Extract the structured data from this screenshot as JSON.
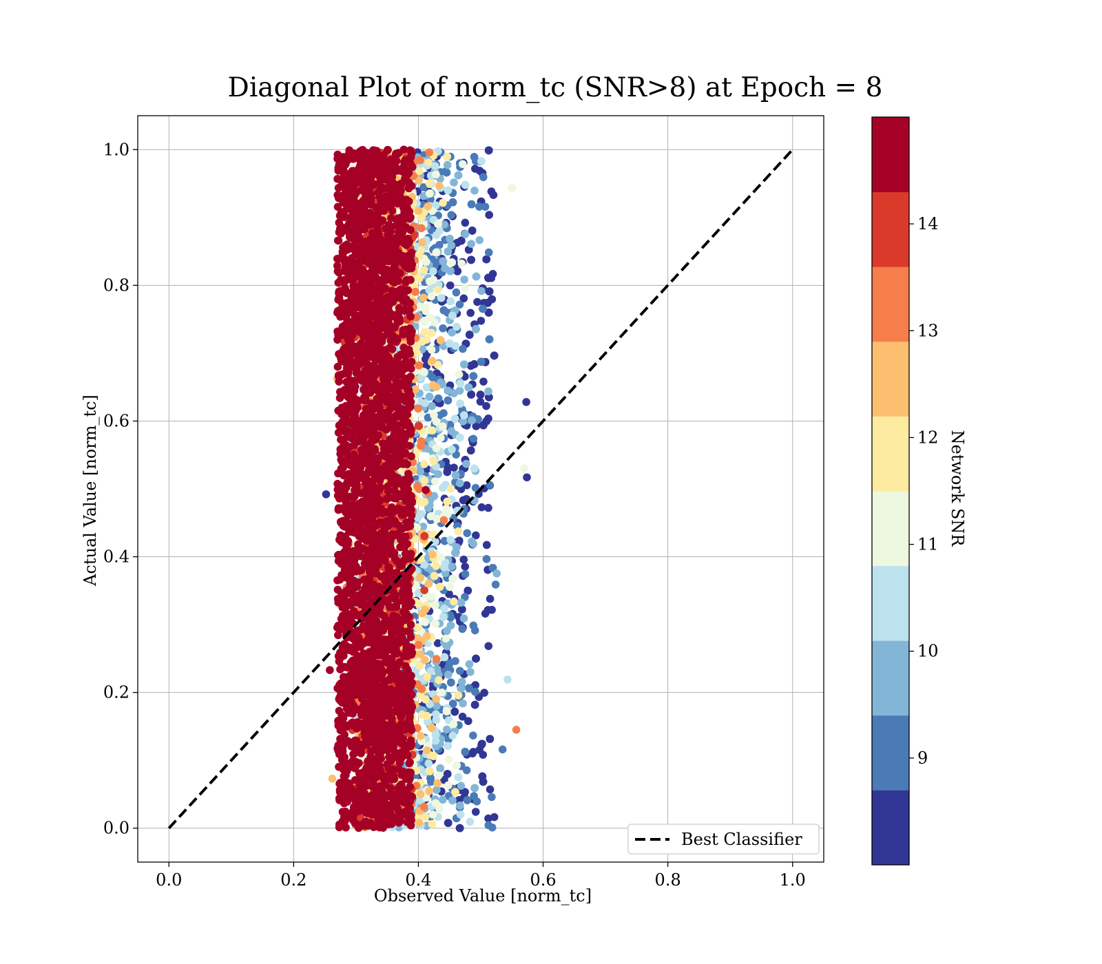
{
  "chart_data": {
    "type": "scatter",
    "title": "Diagonal Plot of norm_tc (SNR>8) at Epoch = 8",
    "xlabel": "Observed Value [norm_tc]",
    "ylabel": "Actual Value [norm_tc]",
    "xlim": [
      -0.05,
      1.05
    ],
    "ylim": [
      -0.05,
      1.05
    ],
    "xticks": [
      "0.0",
      "0.2",
      "0.4",
      "0.6",
      "0.8",
      "1.0"
    ],
    "yticks": [
      "0.0",
      "0.2",
      "0.4",
      "0.6",
      "0.8",
      "1.0"
    ],
    "grid": true,
    "legend": {
      "placement": "bottom-right",
      "entries": [
        "Best Classifier"
      ]
    },
    "reference_line": {
      "name": "Best Classifier",
      "x": [
        0,
        1
      ],
      "y": [
        0,
        1
      ],
      "style": "dashed",
      "color": "#000000"
    },
    "scatter_distribution": {
      "x_range": [
        0.25,
        0.575
      ],
      "y_range": [
        0.0,
        1.0
      ],
      "dense_core_x_range": [
        0.27,
        0.39
      ],
      "note_color_trend": "high SNR (dark red) concentrated near x≈0.27–0.39; lower SNR (blue) spread toward x≈0.45–0.53"
    },
    "outliers": [
      {
        "x": 0.573,
        "y": 0.628,
        "snr": 8.2
      },
      {
        "x": 0.574,
        "y": 0.517,
        "snr": 8.3
      },
      {
        "x": 0.557,
        "y": 0.145,
        "snr": 13.2
      },
      {
        "x": 0.55,
        "y": 0.943,
        "snr": 11.2
      },
      {
        "x": 0.57,
        "y": 0.53,
        "snr": 11.3
      },
      {
        "x": 0.543,
        "y": 0.219,
        "snr": 10.3
      },
      {
        "x": 0.535,
        "y": 0.116,
        "snr": 9.0
      },
      {
        "x": 0.252,
        "y": 0.492,
        "snr": 8.4
      },
      {
        "x": 0.258,
        "y": 0.233,
        "snr": 14.6
      },
      {
        "x": 0.262,
        "y": 0.073,
        "snr": 12.6
      }
    ],
    "colorbar": {
      "label": "Network SNR",
      "min": 8.0,
      "max": 15.0,
      "ticks": [
        "9",
        "10",
        "11",
        "12",
        "13",
        "14"
      ],
      "tick_values": [
        9,
        10,
        11,
        12,
        13,
        14
      ],
      "colors": [
        "#313695",
        "#4575b4",
        "#74add1",
        "#abd9e9",
        "#e0f3f8",
        "#fee090",
        "#fdae61",
        "#f46d43",
        "#d73027",
        "#a50026"
      ],
      "band_colors": [
        "#313695",
        "#4a7bb7",
        "#83b6d6",
        "#bde2ee",
        "#eef7e0",
        "#fdeba1",
        "#fcbf6f",
        "#f57e4b",
        "#da3a2a",
        "#a50026"
      ]
    }
  }
}
